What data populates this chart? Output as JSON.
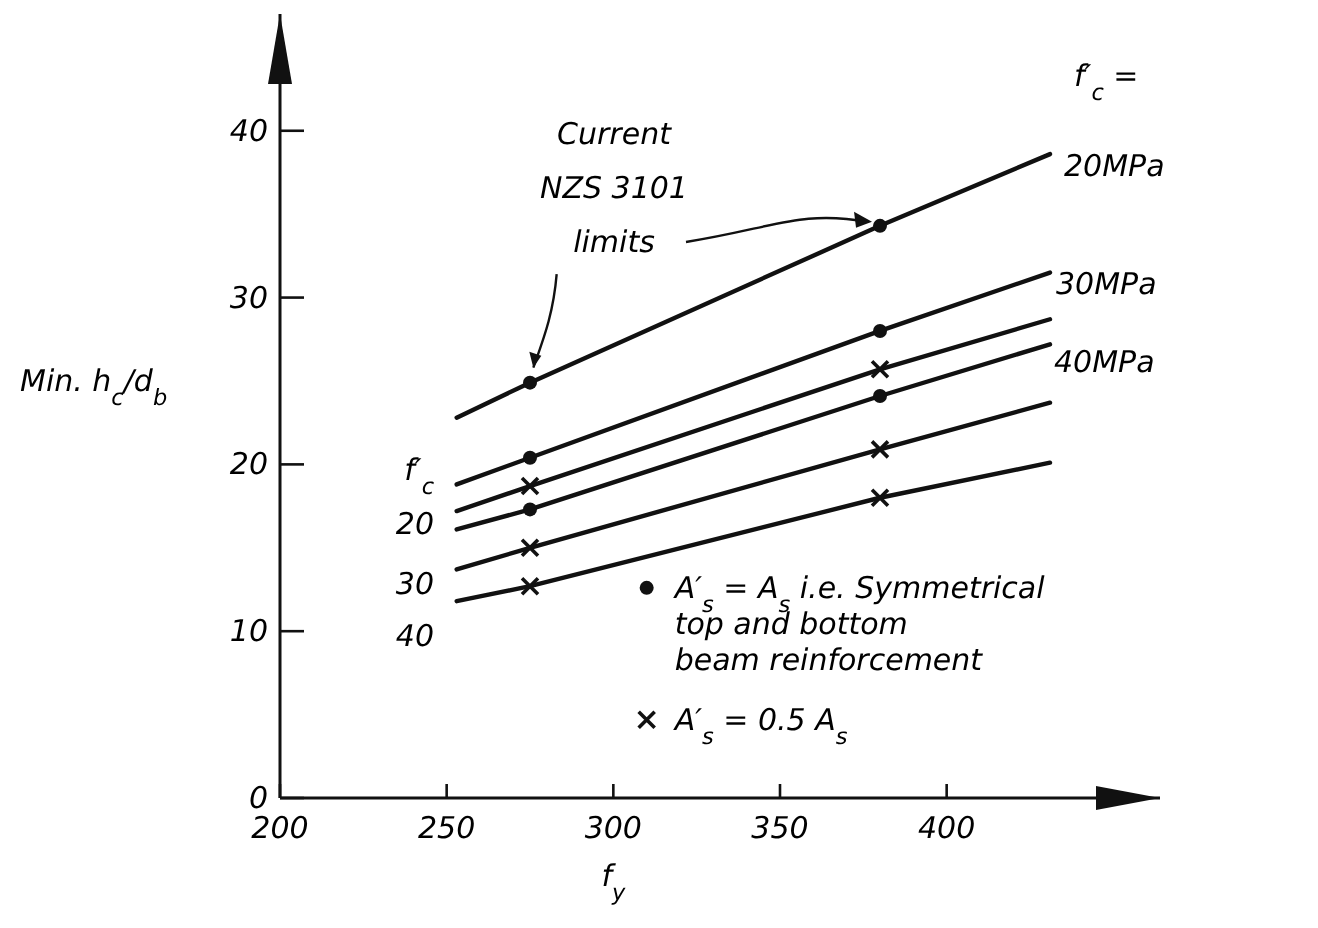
{
  "chart_data": {
    "type": "line",
    "xlabel": "f$_{y}$",
    "ylabel": "Min. h$_{c}$/d$_{b}$",
    "xlim": [
      200,
      464
    ],
    "ylim": [
      0,
      47
    ],
    "xticks": [
      200,
      250,
      300,
      350,
      400
    ],
    "yticks": [
      0,
      10,
      20,
      30,
      40
    ],
    "grid": false,
    "legend": "bottom right",
    "line_style": "solid",
    "series": [
      {
        "color": "#111111",
        "x": [
          253,
          275,
          380,
          431
        ],
        "values": [
          22.8,
          24.9,
          34.3,
          38.6
        ],
        "marker": "none"
      },
      {
        "color": "#111111",
        "x": [
          253,
          275,
          380,
          431
        ],
        "values": [
          18.8,
          20.4,
          28.0,
          31.5
        ],
        "marker": "none"
      },
      {
        "color": "#111111",
        "x": [
          253,
          275,
          380,
          431
        ],
        "values": [
          17.2,
          18.7,
          25.7,
          28.7
        ],
        "marker": "none"
      },
      {
        "color": "#111111",
        "x": [
          253,
          275,
          380,
          431
        ],
        "values": [
          16.1,
          17.3,
          24.1,
          27.2
        ],
        "marker": "none"
      },
      {
        "color": "#111111",
        "x": [
          253,
          275,
          380,
          431
        ],
        "values": [
          13.7,
          15.0,
          20.9,
          23.7
        ],
        "marker": "none"
      },
      {
        "color": "#111111",
        "x": [
          253,
          275,
          380,
          431
        ],
        "values": [
          11.8,
          12.7,
          18.0,
          20.1
        ],
        "marker": "none"
      },
      {
        "type": "scatter",
        "name": "A′$_{s}$ = A$_{s}$  i.e. Symmetrical\ntop and bottom\nbeam reinforcement",
        "color": "#111111",
        "marker": "circle",
        "x": [
          275,
          275,
          275,
          380,
          380,
          380
        ],
        "values": [
          24.9,
          20.4,
          17.3,
          34.3,
          28.0,
          24.1
        ]
      },
      {
        "type": "scatter",
        "name": "A′$_{s}$ = 0.5 A$_{s}$",
        "color": "#111111",
        "marker": "cross",
        "x": [
          275,
          275,
          275,
          380,
          380,
          380
        ],
        "values": [
          18.7,
          15.0,
          12.7,
          25.7,
          20.9,
          18.0
        ]
      }
    ],
    "annotations": [
      "f′$_{c}$ =",
      "20MPa",
      "30MPa",
      "40MPa",
      "f′$_{c}$",
      "20",
      "30",
      "40",
      {
        "text": "Current\nNZS 3101\nlimits",
        "x": 380,
        "y": 34.3
      }
    ]
  }
}
